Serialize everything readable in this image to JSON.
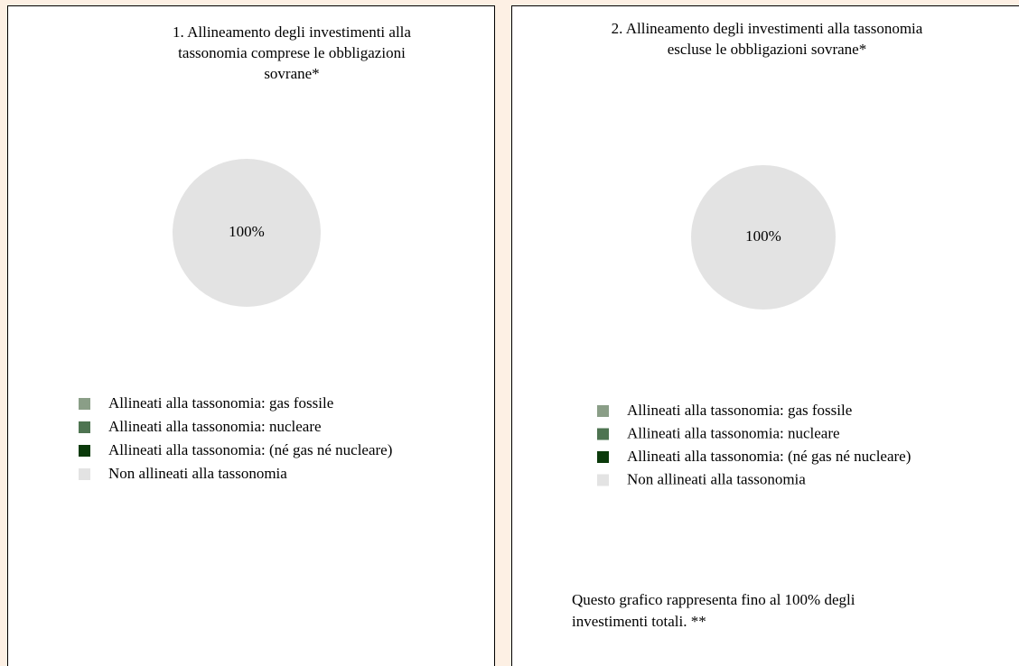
{
  "chart_data": [
    {
      "type": "pie",
      "title": [
        "1. Allineamento degli investimenti alla",
        "tassonomia comprese le obbligazioni",
        "sovrane*"
      ],
      "categories": [
        "Allineati alla tassonomia: gas fossile",
        "Allineati alla tassonomia: nucleare",
        "Allineati alla tassonomia: (né gas né nucleare)",
        "Non allineati alla tassonomia"
      ],
      "values": [
        0,
        0,
        0,
        100
      ],
      "value_labels": [
        null,
        null,
        null,
        "100%"
      ],
      "colors": [
        "#8a9e87",
        "#4e7451",
        "#0b3a0b",
        "#e3e3e3"
      ],
      "legend": "bottom"
    },
    {
      "type": "pie",
      "title": [
        "2. Allineamento degli investimenti alla tassonomia",
        "escluse le obbligazioni sovrane*"
      ],
      "categories": [
        "Allineati alla tassonomia: gas fossile",
        "Allineati alla tassonomia: nucleare",
        "Allineati alla tassonomia: (né gas né nucleare)",
        "Non allineati alla tassonomia"
      ],
      "values": [
        0,
        0,
        0,
        100
      ],
      "value_labels": [
        null,
        null,
        null,
        "100%"
      ],
      "colors": [
        "#8a9e87",
        "#4e7451",
        "#0b3a0b",
        "#e3e3e3"
      ],
      "legend": "bottom",
      "note": [
        "Questo grafico rappresenta fino al 100% degli",
        "investimenti totali. **"
      ]
    }
  ]
}
